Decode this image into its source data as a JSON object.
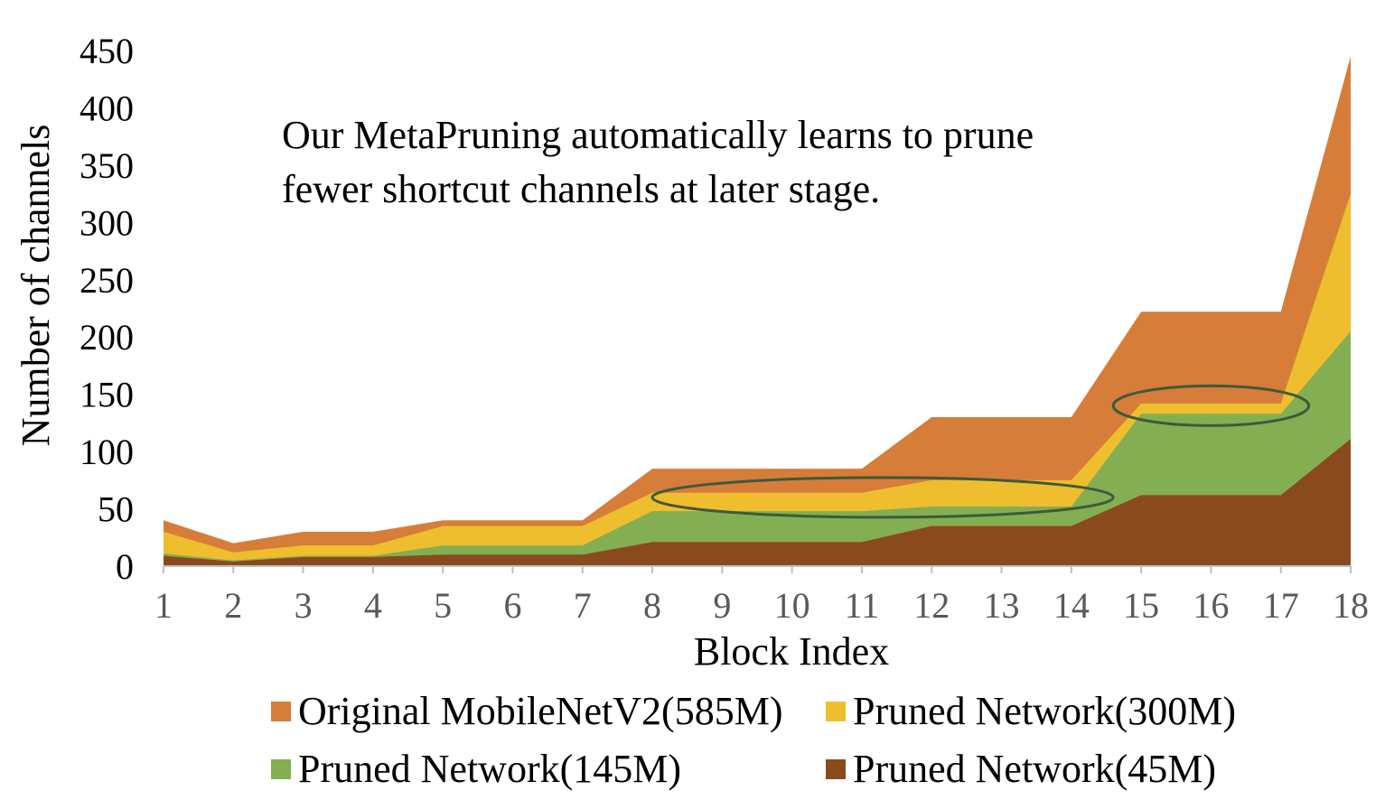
{
  "chart_data": {
    "type": "area",
    "title": "",
    "xlabel": "Block Index",
    "ylabel": "Number of channels",
    "x": [
      1,
      2,
      3,
      4,
      5,
      6,
      7,
      8,
      9,
      10,
      11,
      12,
      13,
      14,
      15,
      16,
      17,
      18
    ],
    "ylim": [
      0,
      450
    ],
    "yticks": [
      0,
      50,
      100,
      150,
      200,
      250,
      300,
      350,
      400,
      450
    ],
    "grid": false,
    "legend_position": "bottom",
    "annotation": [
      "Our MetaPruning automatically learns to prune",
      "fewer shortcut channels at later stage."
    ],
    "highlight_regions": [
      {
        "from_x": 8.0,
        "to_x": 14.6,
        "center_y": 60
      },
      {
        "from_x": 14.6,
        "to_x": 17.4,
        "center_y": 140
      }
    ],
    "series": [
      {
        "name": "Original MobileNetV2(585M)",
        "color": "#D67D3A",
        "values": [
          40,
          20,
          30,
          30,
          40,
          40,
          40,
          85,
          85,
          85,
          85,
          130,
          130,
          130,
          222,
          222,
          222,
          445
        ]
      },
      {
        "name": "Pruned Network(300M)",
        "color": "#EEBE2E",
        "values": [
          30,
          12,
          18,
          18,
          35,
          35,
          35,
          64,
          64,
          64,
          64,
          75,
          75,
          75,
          142,
          142,
          142,
          325
        ]
      },
      {
        "name": "Pruned Network(145M)",
        "color": "#84AE52",
        "values": [
          11,
          5,
          9,
          9,
          18,
          18,
          18,
          48,
          48,
          48,
          48,
          52,
          52,
          52,
          133,
          133,
          133,
          205
        ]
      },
      {
        "name": "Pruned Network(45M)",
        "color": "#8B4A1E",
        "values": [
          9,
          4,
          8,
          8,
          10,
          10,
          10,
          21,
          21,
          21,
          21,
          35,
          35,
          35,
          62,
          62,
          62,
          111
        ]
      }
    ]
  }
}
